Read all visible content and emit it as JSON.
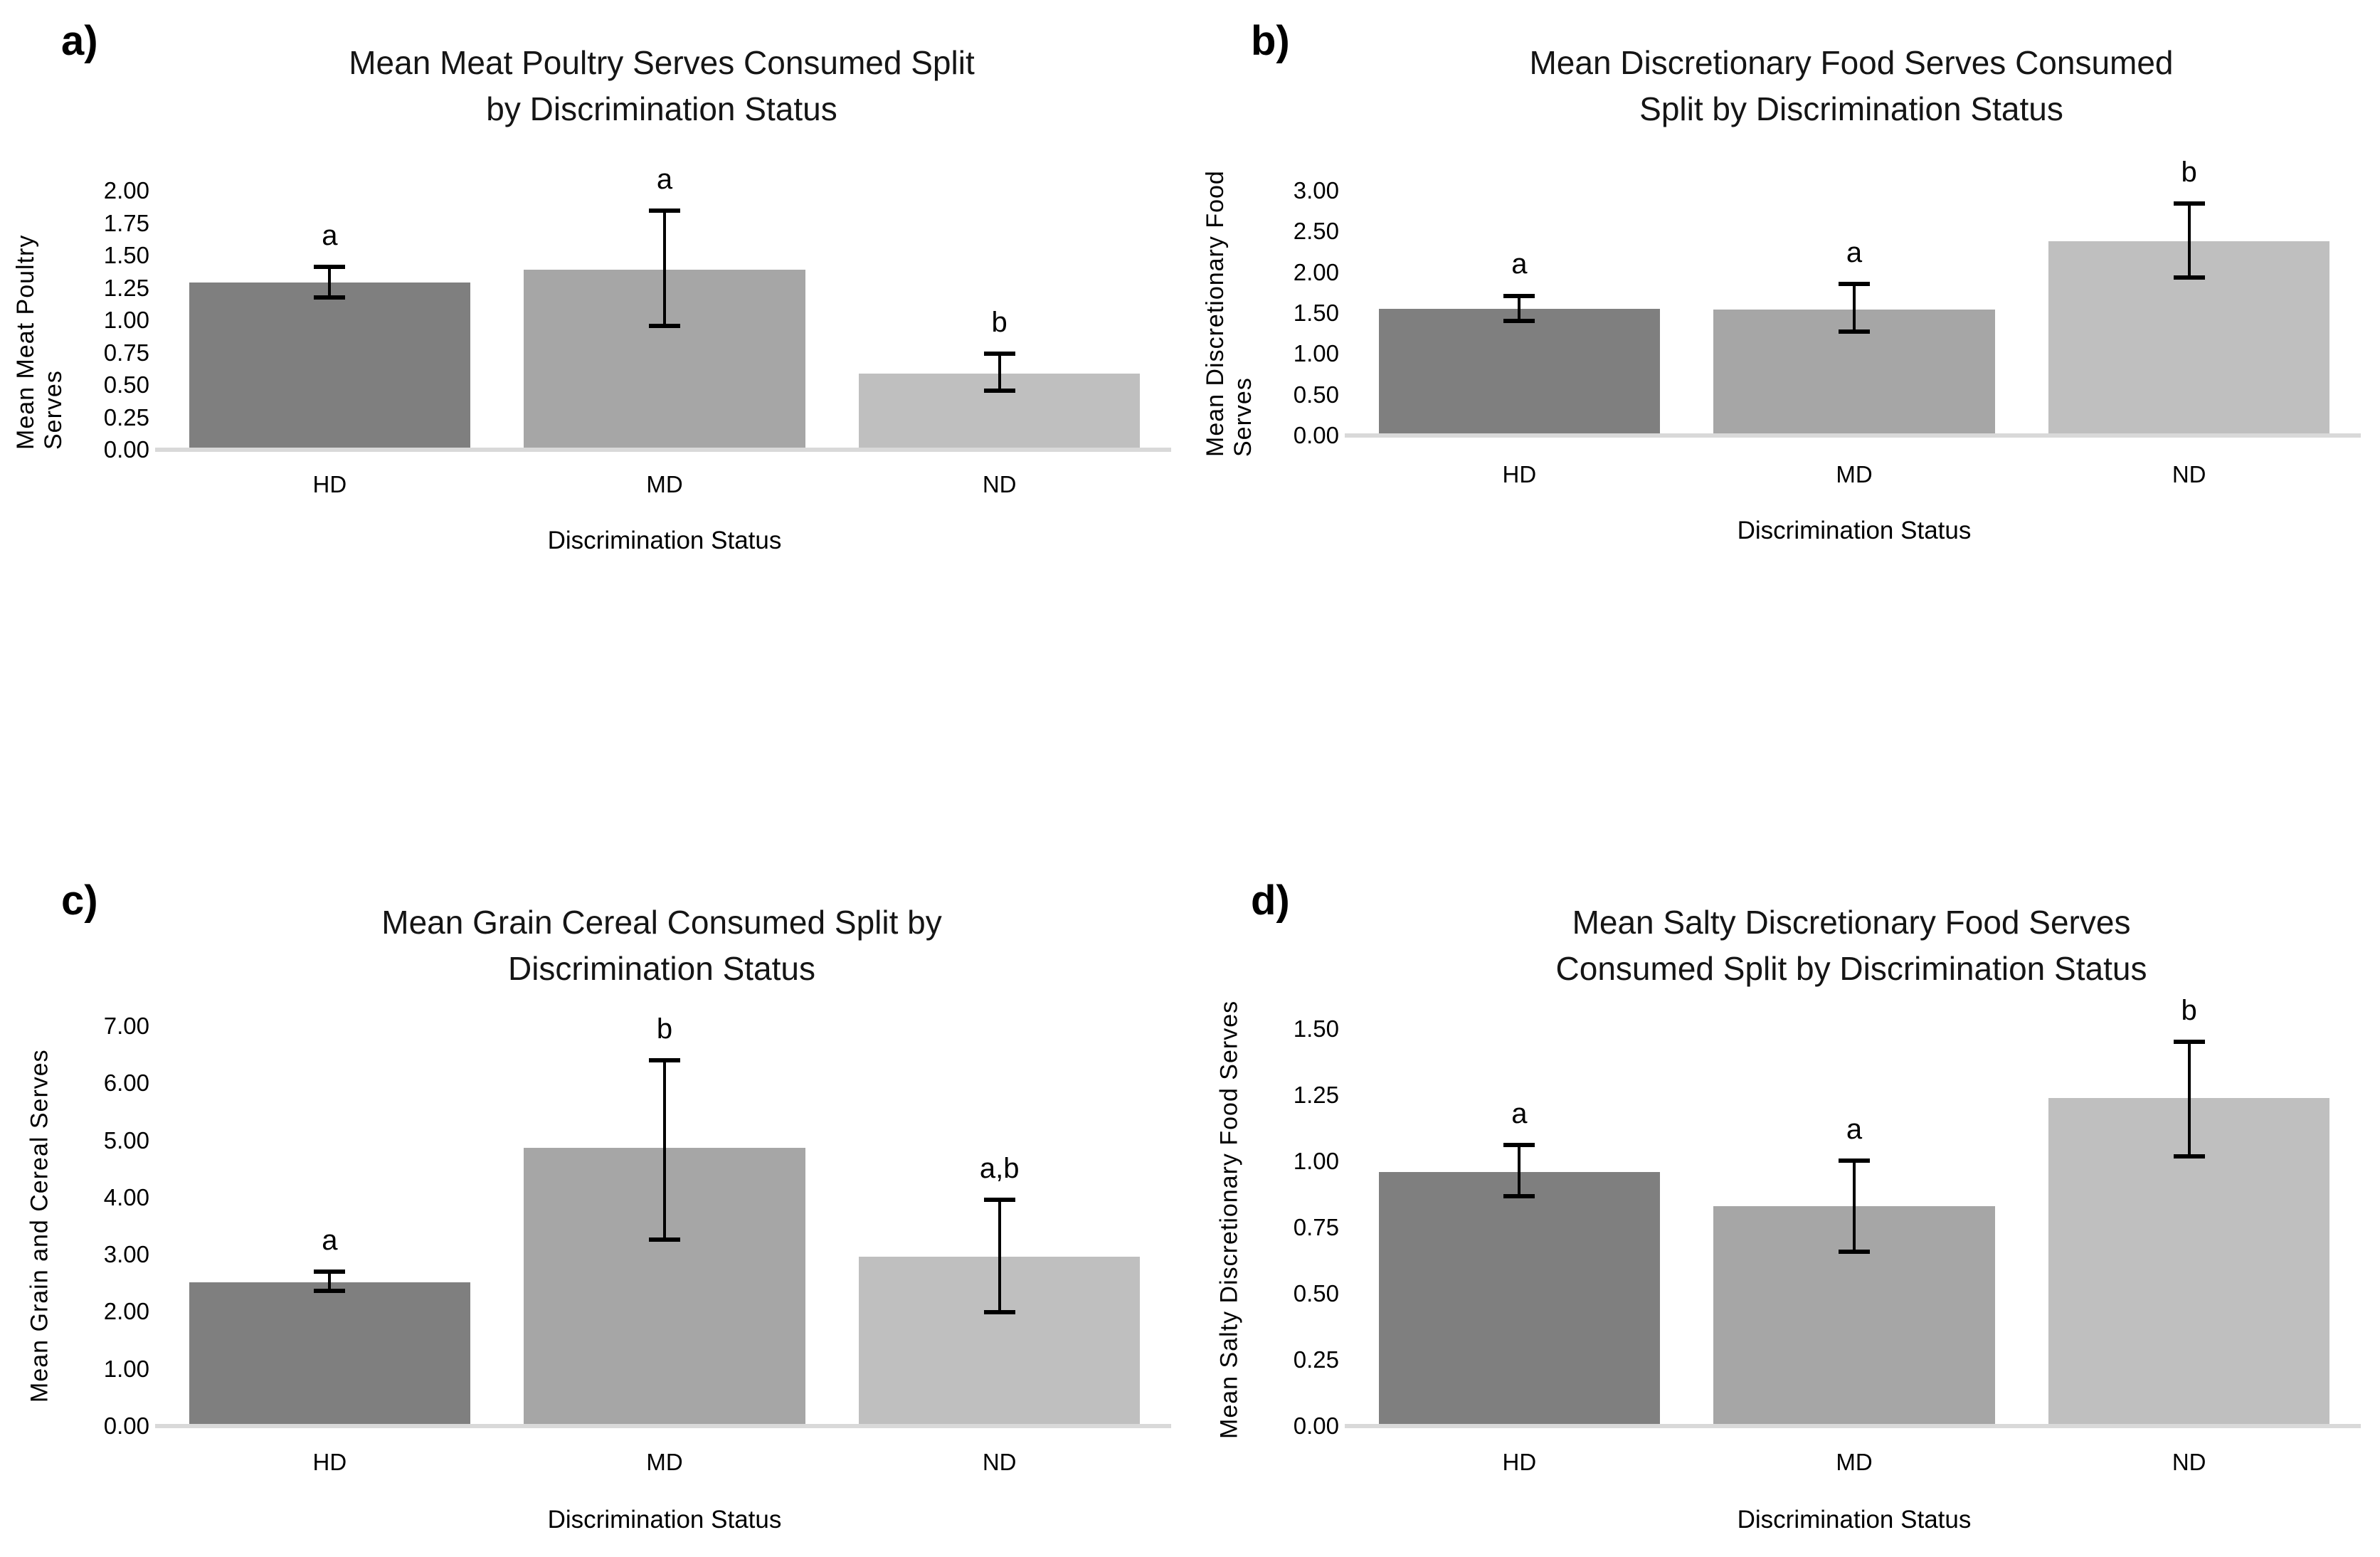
{
  "figure": {
    "x_axis_title": "Discrimination Status",
    "categories": [
      "HD",
      "MD",
      "ND"
    ],
    "bar_colors": [
      "#7f7f7f",
      "#a6a6a6",
      "#bfbfbf"
    ],
    "error_bar_color": "#000000",
    "baseline_color": "#d9d9d9"
  },
  "chart_data": [
    {
      "type": "bar",
      "panel_label": "a)",
      "title": "Mean Meat Poultry Serves Consumed Split by Discrimination Status",
      "title_lines": [
        "Mean Meat Poultry Serves Consumed Split",
        "by Discrimination Status"
      ],
      "ylabel": "Mean Meat Poultry Serves",
      "xlabel": "Discrimination Status",
      "categories": [
        "HD",
        "MD",
        "ND"
      ],
      "values": [
        1.29,
        1.39,
        0.59
      ],
      "error_low": [
        1.16,
        0.94,
        0.44
      ],
      "error_high": [
        1.43,
        1.86,
        0.76
      ],
      "sig_letters": [
        "a",
        "a",
        "b"
      ],
      "ylim": [
        0,
        2.0
      ],
      "ytick_values": [
        0,
        0.25,
        0.5,
        0.75,
        1.0,
        1.25,
        1.5,
        1.75,
        2.0
      ],
      "ytick_labels": [
        "0.00",
        "0.25",
        "0.50",
        "0.75",
        "1.00",
        "1.25",
        "1.50",
        "1.75",
        "2.00"
      ],
      "bar_colors": [
        "#7f7f7f",
        "#a6a6a6",
        "#bfbfbf"
      ],
      "grid": false,
      "legend": false
    },
    {
      "type": "bar",
      "panel_label": "b)",
      "title": "Mean Discretionary Food Serves Consumed Split by Discrimination Status",
      "title_lines": [
        "Mean Discretionary Food Serves Consumed",
        "Split by Discrimination Status"
      ],
      "ylabel": "Mean Discretionary Food Serves",
      "xlabel": "Discrimination Status",
      "categories": [
        "HD",
        "MD",
        "ND"
      ],
      "values": [
        1.55,
        1.54,
        2.38
      ],
      "error_low": [
        1.38,
        1.25,
        1.91
      ],
      "error_high": [
        1.74,
        1.88,
        2.87
      ],
      "sig_letters": [
        "a",
        "a",
        "b"
      ],
      "ylim": [
        0,
        3.0
      ],
      "ytick_values": [
        0,
        0.5,
        1.0,
        1.5,
        2.0,
        2.5,
        3.0
      ],
      "ytick_labels": [
        "0.00",
        "0.50",
        "1.00",
        "1.50",
        "2.00",
        "2.50",
        "3.00"
      ],
      "bar_colors": [
        "#7f7f7f",
        "#a6a6a6",
        "#bfbfbf"
      ],
      "grid": false,
      "legend": false
    },
    {
      "type": "bar",
      "panel_label": "c)",
      "title": "Mean Grain Cereal Consumed Split by Discrimination Status",
      "title_lines": [
        "Mean Grain Cereal Consumed Split by",
        "Discrimination Status"
      ],
      "ylabel": "Mean Grain and Cereal Serves",
      "xlabel": "Discrimination Status",
      "categories": [
        "HD",
        "MD",
        "ND"
      ],
      "values": [
        2.52,
        4.87,
        2.97
      ],
      "error_low": [
        2.33,
        3.23,
        1.95
      ],
      "error_high": [
        2.74,
        6.44,
        4.0
      ],
      "sig_letters": [
        "a",
        "b",
        "a,b"
      ],
      "ylim": [
        0,
        7.0
      ],
      "ytick_values": [
        0,
        1,
        2,
        3,
        4,
        5,
        6,
        7
      ],
      "ytick_labels": [
        "0.00",
        "1.00",
        "2.00",
        "3.00",
        "4.00",
        "5.00",
        "6.00",
        "7.00"
      ],
      "bar_colors": [
        "#7f7f7f",
        "#a6a6a6",
        "#bfbfbf"
      ],
      "grid": false,
      "legend": false
    },
    {
      "type": "bar",
      "panel_label": "d)",
      "title": "Mean Salty Discretionary Food Serves Consumed Split by Discrimination Status",
      "title_lines": [
        "Mean Salty Discretionary Food Serves",
        "Consumed Split by Discrimination Status"
      ],
      "ylabel": "Mean Salty Discretionary  Food Serves",
      "xlabel": "Discrimination Status",
      "categories": [
        "HD",
        "MD",
        "ND"
      ],
      "values": [
        0.96,
        0.83,
        1.24
      ],
      "error_low": [
        0.86,
        0.65,
        1.01
      ],
      "error_high": [
        1.07,
        1.01,
        1.46
      ],
      "sig_letters": [
        "a",
        "a",
        "b"
      ],
      "ylim": [
        0,
        1.5
      ],
      "ytick_values": [
        0,
        0.25,
        0.5,
        0.75,
        1.0,
        1.25,
        1.5
      ],
      "ytick_labels": [
        "0.00",
        "0.25",
        "0.50",
        "0.75",
        "1.00",
        "1.25",
        "1.50"
      ],
      "bar_colors": [
        "#7f7f7f",
        "#a6a6a6",
        "#bfbfbf"
      ],
      "grid": false,
      "legend": false
    }
  ]
}
